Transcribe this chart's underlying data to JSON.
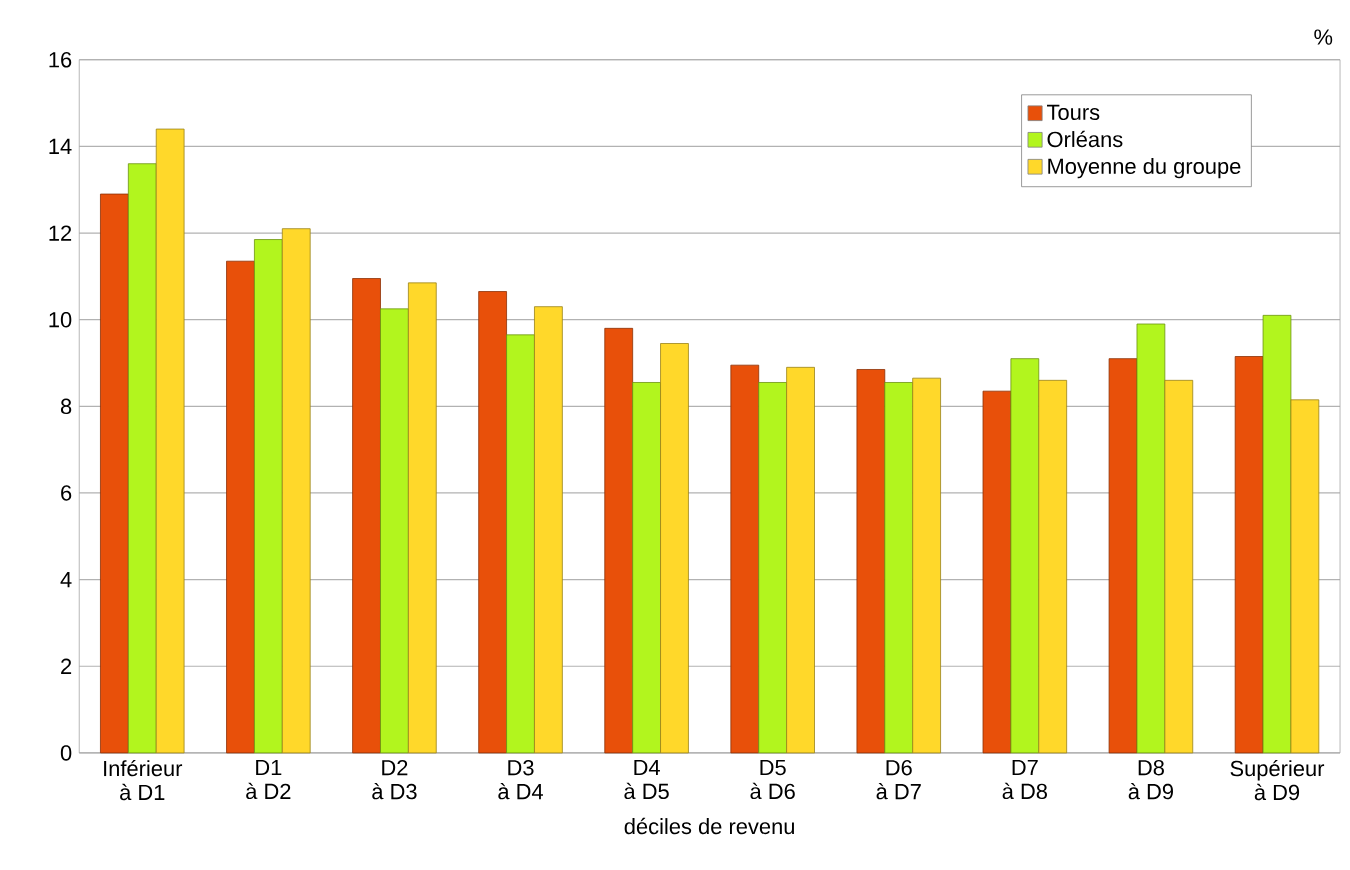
{
  "chart_data": {
    "type": "bar",
    "xlabel": "déciles de revenu",
    "ylabel": "%",
    "categories": [
      "Inférieur à D1",
      "D1 à D2",
      "D2 à D3",
      "D3 à D4",
      "D4 à D5",
      "D5 à D6",
      "D6 à D7",
      "D7 à D8",
      "D8 à D9",
      "Supérieur à D9"
    ],
    "series": [
      {
        "name": "Tours",
        "color": "#e8500a",
        "values": [
          12.9,
          11.35,
          10.95,
          10.65,
          9.8,
          8.95,
          8.85,
          8.35,
          9.1,
          9.15
        ]
      },
      {
        "name": "Orléans",
        "color": "#b2f51e",
        "values": [
          13.6,
          11.85,
          10.25,
          9.65,
          8.55,
          8.55,
          8.55,
          9.1,
          9.9,
          10.1
        ]
      },
      {
        "name": "Moyenne du groupe",
        "color": "#ffd82a",
        "values": [
          14.4,
          12.1,
          10.85,
          10.3,
          9.45,
          8.9,
          8.65,
          8.6,
          8.6,
          8.15
        ]
      }
    ],
    "ylim": [
      0,
      16
    ],
    "yticks": [
      0,
      2,
      4,
      6,
      8,
      10,
      12,
      14,
      16
    ],
    "grid": "y",
    "legend": "top right"
  }
}
